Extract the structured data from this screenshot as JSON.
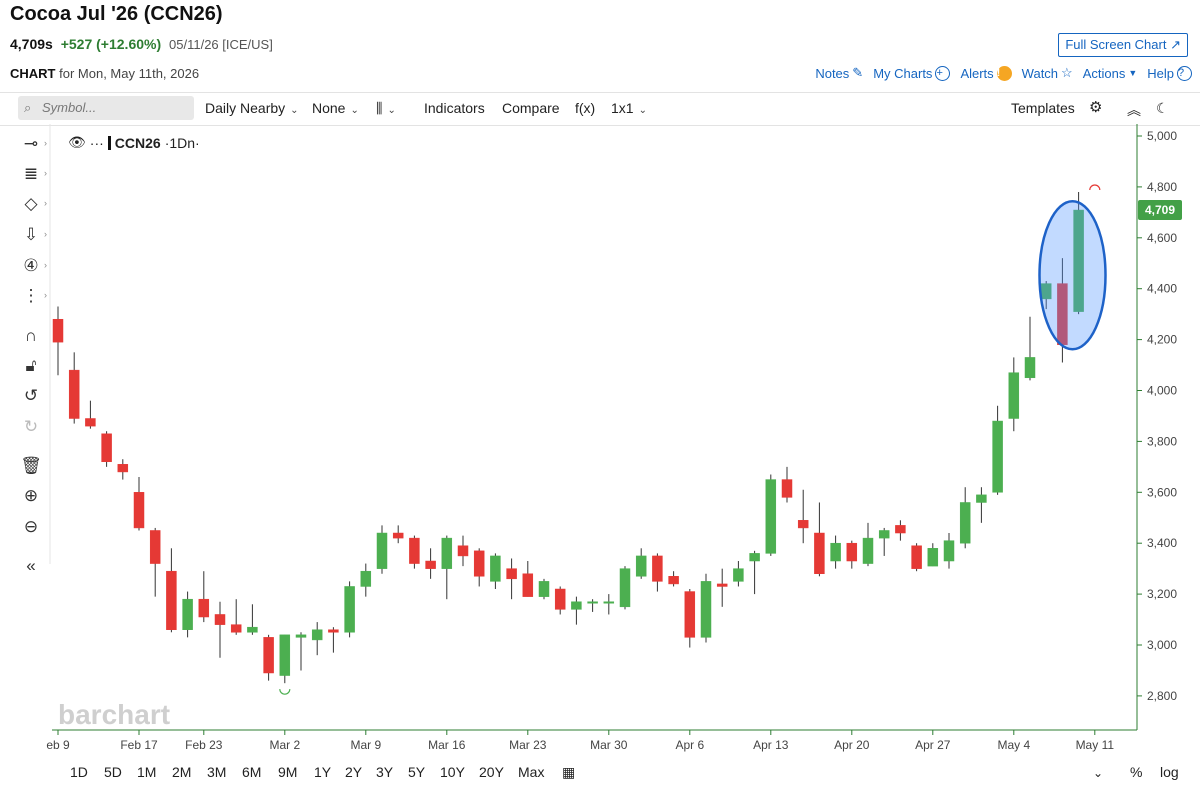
{
  "header": {
    "title": "Cocoa Jul '26 (CCN26)",
    "last_price": "4,709s",
    "change": "+527 (+12.60%)",
    "date_exchange": "05/11/26 [ICE/US]",
    "fullscreen_label": "Full Screen Chart",
    "chart_word": "CHART",
    "chart_for": "for Mon, May 11th, 2026"
  },
  "top_links": {
    "notes": "Notes",
    "my_charts": "My Charts",
    "alerts": "Alerts",
    "watch": "Watch",
    "actions": "Actions",
    "help": "Help"
  },
  "toolbar": {
    "symbol_placeholder": "Symbol...",
    "period": "Daily Nearby",
    "overlay": "None",
    "indicators": "Indicators",
    "compare": "Compare",
    "fx": "f(x)",
    "layout": "1x1",
    "templates": "Templates"
  },
  "legend": {
    "symbol": "CCN26",
    "interval": "·1Dn·",
    "dots": "···"
  },
  "watermark": "barchart",
  "timeframes": [
    "1D",
    "5D",
    "1M",
    "2M",
    "3M",
    "6M",
    "9M",
    "1Y",
    "2Y",
    "3Y",
    "5Y",
    "10Y",
    "20Y",
    "Max"
  ],
  "scale_options": {
    "percent": "%",
    "log": "log"
  },
  "colors": {
    "up": "#4caf50",
    "down": "#e53935",
    "axis": "#2e7d32",
    "highlight": "#1e62c8"
  },
  "chart_data": {
    "type": "candlestick",
    "ylim": [
      2700,
      5050
    ],
    "yticks": [
      2800,
      3000,
      3200,
      3400,
      3600,
      3800,
      4000,
      4200,
      4400,
      4600,
      4800,
      5000
    ],
    "ytick_labels": [
      "2,800",
      "3,000",
      "3,200",
      "3,400",
      "3,600",
      "3,800",
      "4,000",
      "4,200",
      "4,400",
      "4,600",
      "4,800",
      "5,000"
    ],
    "xtick_labels": [
      {
        "label": "eb 9",
        "index": 0
      },
      {
        "label": "Feb 17",
        "index": 5
      },
      {
        "label": "Feb 23",
        "index": 9
      },
      {
        "label": "Mar 2",
        "index": 14
      },
      {
        "label": "Mar 9",
        "index": 19
      },
      {
        "label": "Mar 16",
        "index": 24
      },
      {
        "label": "Mar 23",
        "index": 29
      },
      {
        "label": "Mar 30",
        "index": 34
      },
      {
        "label": "Apr 6",
        "index": 39
      },
      {
        "label": "Apr 13",
        "index": 44
      },
      {
        "label": "Apr 20",
        "index": 49
      },
      {
        "label": "Apr 27",
        "index": 54
      },
      {
        "label": "May 4",
        "index": 59
      },
      {
        "label": "May 11",
        "index": 64
      }
    ],
    "last_price_label": "4,709",
    "last_price": 4709,
    "candles": [
      {
        "o": 4280,
        "h": 4330,
        "l": 4060,
        "c": 4190
      },
      {
        "o": 4080,
        "h": 4150,
        "l": 3870,
        "c": 3890
      },
      {
        "o": 3890,
        "h": 3960,
        "l": 3850,
        "c": 3860
      },
      {
        "o": 3830,
        "h": 3840,
        "l": 3700,
        "c": 3720
      },
      {
        "o": 3710,
        "h": 3730,
        "l": 3650,
        "c": 3680
      },
      {
        "o": 3600,
        "h": 3660,
        "l": 3450,
        "c": 3460
      },
      {
        "o": 3450,
        "h": 3460,
        "l": 3190,
        "c": 3320
      },
      {
        "o": 3290,
        "h": 3380,
        "l": 3050,
        "c": 3060
      },
      {
        "o": 3060,
        "h": 3210,
        "l": 3030,
        "c": 3180
      },
      {
        "o": 3180,
        "h": 3290,
        "l": 3090,
        "c": 3110
      },
      {
        "o": 3120,
        "h": 3170,
        "l": 2950,
        "c": 3080
      },
      {
        "o": 3080,
        "h": 3180,
        "l": 3040,
        "c": 3050
      },
      {
        "o": 3050,
        "h": 3160,
        "l": 3040,
        "c": 3070
      },
      {
        "o": 3030,
        "h": 3040,
        "l": 2860,
        "c": 2890
      },
      {
        "o": 2880,
        "h": 3040,
        "l": 2850,
        "c": 3040
      },
      {
        "o": 3030,
        "h": 3050,
        "l": 2900,
        "c": 3040
      },
      {
        "o": 3020,
        "h": 3090,
        "l": 2960,
        "c": 3060
      },
      {
        "o": 3060,
        "h": 3070,
        "l": 2970,
        "c": 3050
      },
      {
        "o": 3050,
        "h": 3250,
        "l": 3030,
        "c": 3230
      },
      {
        "o": 3230,
        "h": 3320,
        "l": 3190,
        "c": 3290
      },
      {
        "o": 3300,
        "h": 3470,
        "l": 3280,
        "c": 3440
      },
      {
        "o": 3440,
        "h": 3470,
        "l": 3400,
        "c": 3420
      },
      {
        "o": 3420,
        "h": 3430,
        "l": 3300,
        "c": 3320
      },
      {
        "o": 3330,
        "h": 3380,
        "l": 3260,
        "c": 3300
      },
      {
        "o": 3300,
        "h": 3430,
        "l": 3180,
        "c": 3420
      },
      {
        "o": 3390,
        "h": 3430,
        "l": 3310,
        "c": 3350
      },
      {
        "o": 3370,
        "h": 3380,
        "l": 3230,
        "c": 3270
      },
      {
        "o": 3250,
        "h": 3360,
        "l": 3220,
        "c": 3350
      },
      {
        "o": 3300,
        "h": 3340,
        "l": 3180,
        "c": 3260
      },
      {
        "o": 3280,
        "h": 3330,
        "l": 3190,
        "c": 3190
      },
      {
        "o": 3190,
        "h": 3260,
        "l": 3180,
        "c": 3250
      },
      {
        "o": 3220,
        "h": 3230,
        "l": 3120,
        "c": 3140
      },
      {
        "o": 3140,
        "h": 3190,
        "l": 3080,
        "c": 3170
      },
      {
        "o": 3170,
        "h": 3180,
        "l": 3130,
        "c": 3170
      },
      {
        "o": 3170,
        "h": 3200,
        "l": 3120,
        "c": 3170
      },
      {
        "o": 3150,
        "h": 3310,
        "l": 3140,
        "c": 3300
      },
      {
        "o": 3270,
        "h": 3380,
        "l": 3260,
        "c": 3350
      },
      {
        "o": 3350,
        "h": 3360,
        "l": 3210,
        "c": 3250
      },
      {
        "o": 3270,
        "h": 3290,
        "l": 3230,
        "c": 3240
      },
      {
        "o": 3210,
        "h": 3220,
        "l": 2990,
        "c": 3030
      },
      {
        "o": 3030,
        "h": 3280,
        "l": 3010,
        "c": 3250
      },
      {
        "o": 3240,
        "h": 3300,
        "l": 3150,
        "c": 3230
      },
      {
        "o": 3250,
        "h": 3330,
        "l": 3230,
        "c": 3300
      },
      {
        "o": 3330,
        "h": 3370,
        "l": 3200,
        "c": 3360
      },
      {
        "o": 3360,
        "h": 3670,
        "l": 3350,
        "c": 3650
      },
      {
        "o": 3650,
        "h": 3700,
        "l": 3560,
        "c": 3580
      },
      {
        "o": 3490,
        "h": 3610,
        "l": 3400,
        "c": 3460
      },
      {
        "o": 3440,
        "h": 3560,
        "l": 3270,
        "c": 3280
      },
      {
        "o": 3330,
        "h": 3430,
        "l": 3300,
        "c": 3400
      },
      {
        "o": 3400,
        "h": 3410,
        "l": 3300,
        "c": 3330
      },
      {
        "o": 3320,
        "h": 3480,
        "l": 3310,
        "c": 3420
      },
      {
        "o": 3420,
        "h": 3460,
        "l": 3350,
        "c": 3450
      },
      {
        "o": 3470,
        "h": 3490,
        "l": 3410,
        "c": 3440
      },
      {
        "o": 3390,
        "h": 3400,
        "l": 3290,
        "c": 3300
      },
      {
        "o": 3310,
        "h": 3400,
        "l": 3310,
        "c": 3380
      },
      {
        "o": 3330,
        "h": 3440,
        "l": 3300,
        "c": 3410
      },
      {
        "o": 3400,
        "h": 3620,
        "l": 3380,
        "c": 3560
      },
      {
        "o": 3560,
        "h": 3620,
        "l": 3480,
        "c": 3590
      },
      {
        "o": 3600,
        "h": 3940,
        "l": 3590,
        "c": 3880
      },
      {
        "o": 3890,
        "h": 4130,
        "l": 3840,
        "c": 4070
      },
      {
        "o": 4050,
        "h": 4290,
        "l": 4040,
        "c": 4130
      },
      {
        "o": 4360,
        "h": 4430,
        "l": 4320,
        "c": 4420
      },
      {
        "o": 4420,
        "h": 4520,
        "l": 4110,
        "c": 4180
      },
      {
        "o": 4310,
        "h": 4780,
        "l": 4300,
        "c": 4709
      }
    ],
    "markers": [
      {
        "type": "low-arc",
        "index": 14,
        "value": 2850
      },
      {
        "type": "high-arc",
        "index": 64,
        "value": 4780
      }
    ]
  }
}
